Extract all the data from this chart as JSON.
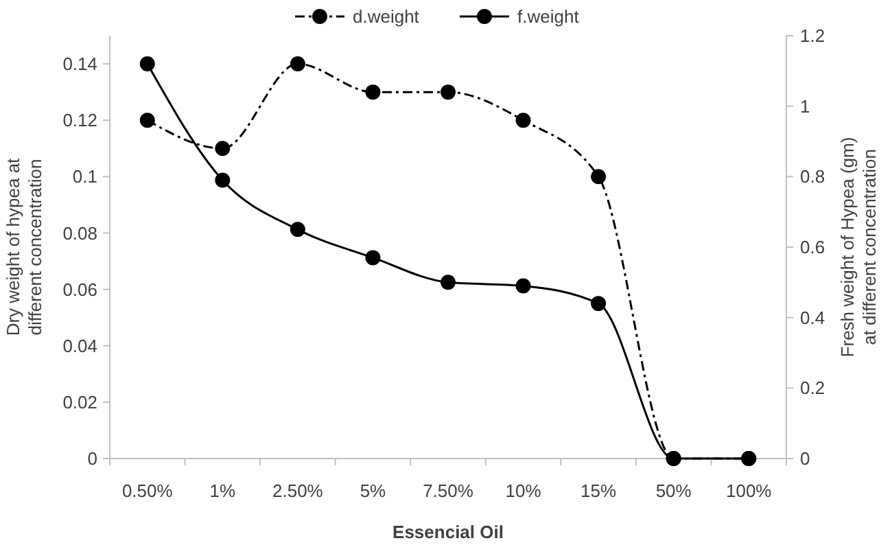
{
  "chart_data": {
    "type": "line",
    "xlabel": "Essencial Oil",
    "ylabel": "Dry  weight of hypea at\ndifferent concentration",
    "y2label": "Fresh weight of Hypea (gm)\nat different concentration",
    "categories": [
      "0.50%",
      "1%",
      "2.50%",
      "5%",
      "7.50%",
      "10%",
      "15%",
      "50%",
      "100%"
    ],
    "series": [
      {
        "name": "d.weight",
        "color": "#000000",
        "line_style": "dashed",
        "values": [
          0.12,
          0.11,
          0.14,
          0.13,
          0.13,
          0.12,
          0.1,
          0,
          0
        ]
      },
      {
        "name": "f.weight",
        "color": "#000000",
        "line_style": "solid",
        "axis": "y2",
        "values": [
          1.12,
          0.79,
          0.65,
          0.57,
          0.5,
          0.49,
          0.44,
          0,
          0
        ]
      }
    ],
    "ylim": [
      0,
      0.15
    ],
    "yticks": [
      0,
      0.02,
      0.04,
      0.06,
      0.08,
      {
        "value": 0.1,
        "label": "0.1"
      },
      0.12,
      0.14
    ],
    "y2lim": [
      0,
      1.2
    ],
    "y2ticks": [
      0,
      0.2,
      0.4,
      0.6,
      0.8,
      1,
      1.2
    ],
    "marker": "circle",
    "legend": "top",
    "grid": false
  }
}
